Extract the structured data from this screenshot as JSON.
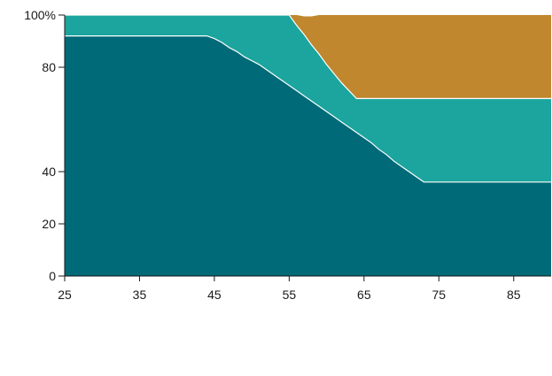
{
  "chart_data": {
    "type": "area",
    "stacked": true,
    "title": "",
    "xlabel": "",
    "ylabel": "",
    "xlim": [
      25,
      90
    ],
    "ylim": [
      0,
      100
    ],
    "x_ticks": [
      "25",
      "35",
      "45",
      "55",
      "65",
      "75",
      "85"
    ],
    "y_ticks": [
      "0",
      "20",
      "40",
      "80",
      "100%"
    ],
    "y_tick_values": [
      0,
      20,
      40,
      80,
      100
    ],
    "grid": false,
    "legend": "none",
    "x": [
      25,
      44,
      45,
      46,
      47,
      48,
      49,
      50,
      51,
      52,
      53,
      54,
      55,
      56,
      57,
      58,
      59,
      60,
      61,
      62,
      63,
      64,
      65,
      66,
      67,
      68,
      69,
      70,
      71,
      72,
      73,
      80,
      90
    ],
    "series": [
      {
        "color": "#006a78",
        "values": [
          92,
          92,
          91,
          89.5,
          87.5,
          86,
          84,
          82.5,
          81,
          79,
          77,
          75,
          73,
          71,
          69,
          67,
          65,
          63,
          61,
          59,
          57,
          55,
          53,
          51,
          48.5,
          46.5,
          44,
          42,
          40,
          38,
          36,
          36,
          36
        ]
      },
      {
        "color": "#1ba59e",
        "values": [
          8,
          8,
          9,
          10.5,
          12.5,
          14,
          16,
          17.5,
          19,
          21,
          23,
          25,
          27,
          25,
          23.5,
          21.5,
          20,
          18,
          16.5,
          15,
          14,
          13,
          15,
          17,
          19.5,
          21.5,
          24,
          26,
          28,
          30,
          32,
          32,
          32
        ]
      },
      {
        "color": "#c1872e",
        "values": [
          0,
          0,
          0,
          0,
          0,
          0,
          0,
          0,
          0,
          0,
          0,
          0,
          0,
          4,
          7,
          11,
          15,
          19,
          22.5,
          26,
          29,
          32,
          32,
          32,
          32,
          32,
          32,
          32,
          32,
          32,
          32,
          32,
          32
        ]
      }
    ]
  }
}
